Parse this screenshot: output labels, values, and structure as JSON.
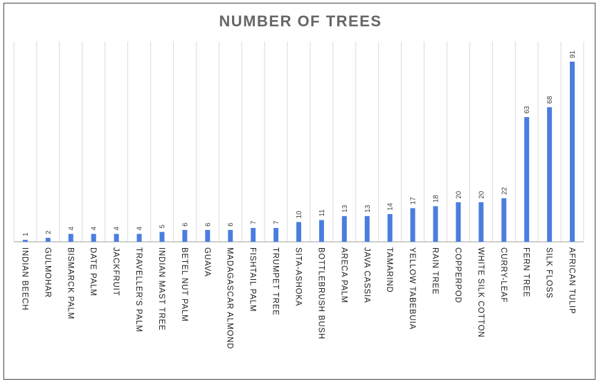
{
  "chart_data": {
    "type": "bar",
    "title": "NUMBER OF TREES",
    "xlabel": "",
    "ylabel": "",
    "categories": [
      "INDIAN BEECH",
      "GULMOHAR",
      "BISMARCK PALM",
      "DATE PALM",
      "JACKFRUIT",
      "TRAVELLER'S PALM",
      "INDIAN MAST TREE",
      "BETEL NUT PALM",
      "GUAVA",
      "MADAGASCAR ALMOND",
      "FISHTAIL PALM",
      "TRUMPET TREE",
      "SITA-ASHOKA",
      "BOTTLEBRUSH BUSH",
      "ARECA PALM",
      "JAVA CASSIA",
      "TAMARIND",
      "YELLOW TABEBUIA",
      "RAIN TREE",
      "COPPERPOD",
      "WHITE SILK COTTON",
      "CURRY-LEAF",
      "FERN TREE",
      "SILK FLOSS",
      "AFRICAN TULIP"
    ],
    "values": [
      1,
      2,
      4,
      4,
      4,
      4,
      5,
      6,
      6,
      6,
      7,
      7,
      10,
      11,
      13,
      13,
      14,
      17,
      18,
      20,
      20,
      22,
      63,
      68,
      91
    ],
    "ylim": [
      0,
      100
    ],
    "grid": true,
    "legend": "none",
    "bar_color": "#4a7de0",
    "axis_color": "#bfbfbf"
  }
}
